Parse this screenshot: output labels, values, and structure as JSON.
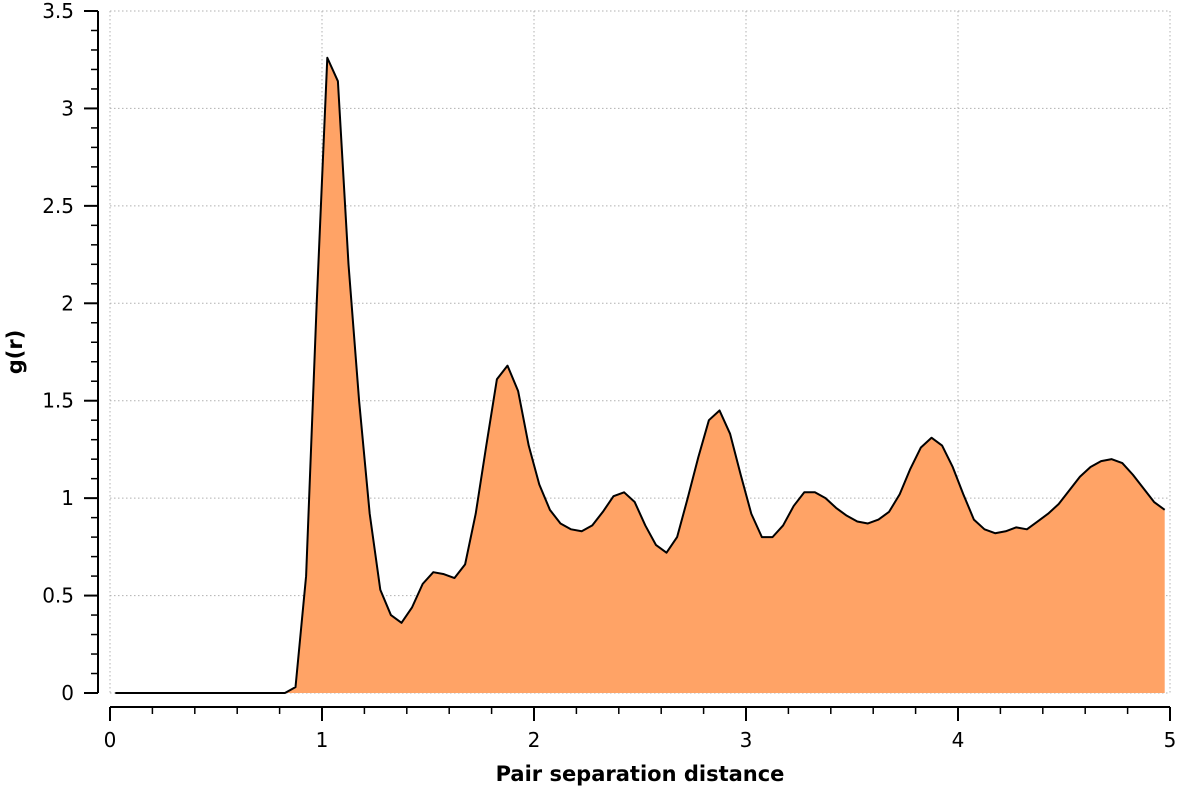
{
  "chart_data": {
    "type": "area",
    "title": "",
    "xlabel": "Pair separation distance",
    "ylabel": "g(r)",
    "xlim": [
      0,
      5
    ],
    "ylim": [
      0,
      3.5
    ],
    "x_ticks": [
      "0",
      "1",
      "2",
      "3",
      "4",
      "5"
    ],
    "y_ticks": [
      "0",
      "0.5",
      "1",
      "1.5",
      "2",
      "2.5",
      "3",
      "3.5"
    ],
    "grid": true,
    "fill_color": "#ffa366",
    "line_color": "#000000",
    "series": [
      {
        "x": [
          0.025,
          0.075,
          0.125,
          0.175,
          0.225,
          0.275,
          0.325,
          0.375,
          0.425,
          0.475,
          0.525,
          0.575,
          0.625,
          0.675,
          0.725,
          0.775,
          0.825,
          0.875,
          0.925,
          0.975,
          1.025,
          1.075,
          1.125,
          1.175,
          1.225,
          1.275,
          1.325,
          1.375,
          1.425,
          1.475,
          1.525,
          1.575,
          1.625,
          1.675,
          1.725,
          1.775,
          1.825,
          1.875,
          1.925,
          1.975,
          2.025,
          2.075,
          2.125,
          2.175,
          2.225,
          2.275,
          2.325,
          2.375,
          2.425,
          2.475,
          2.525,
          2.575,
          2.625,
          2.675,
          2.725,
          2.775,
          2.825,
          2.875,
          2.925,
          2.975,
          3.025,
          3.075,
          3.125,
          3.175,
          3.225,
          3.275,
          3.325,
          3.375,
          3.425,
          3.475,
          3.525,
          3.575,
          3.625,
          3.675,
          3.725,
          3.775,
          3.825,
          3.875,
          3.925,
          3.975,
          4.025,
          4.075,
          4.125,
          4.175,
          4.225,
          4.275,
          4.325,
          4.375,
          4.425,
          4.475,
          4.525,
          4.575,
          4.625,
          4.675,
          4.725,
          4.775,
          4.825,
          4.875,
          4.925,
          4.975
        ],
        "values": [
          0,
          0,
          0,
          0,
          0,
          0,
          0,
          0,
          0,
          0,
          0,
          0,
          0,
          0,
          0,
          0,
          0,
          0.03,
          0.6,
          2.0,
          3.26,
          3.14,
          2.2,
          1.5,
          0.92,
          0.53,
          0.4,
          0.36,
          0.44,
          0.56,
          0.62,
          0.61,
          0.59,
          0.66,
          0.92,
          1.27,
          1.61,
          1.68,
          1.55,
          1.27,
          1.07,
          0.94,
          0.87,
          0.84,
          0.83,
          0.86,
          0.93,
          1.01,
          1.03,
          0.98,
          0.86,
          0.76,
          0.72,
          0.8,
          1.0,
          1.21,
          1.4,
          1.45,
          1.33,
          1.12,
          0.92,
          0.8,
          0.8,
          0.86,
          0.96,
          1.03,
          1.03,
          1.0,
          0.95,
          0.91,
          0.88,
          0.87,
          0.89,
          0.93,
          1.02,
          1.15,
          1.26,
          1.31,
          1.27,
          1.16,
          1.02,
          0.89,
          0.84,
          0.82,
          0.83,
          0.85,
          0.84,
          0.88,
          0.92,
          0.97,
          1.04,
          1.11,
          1.16,
          1.19,
          1.2,
          1.18,
          1.12,
          1.05,
          0.98,
          0.94
        ]
      }
    ]
  }
}
